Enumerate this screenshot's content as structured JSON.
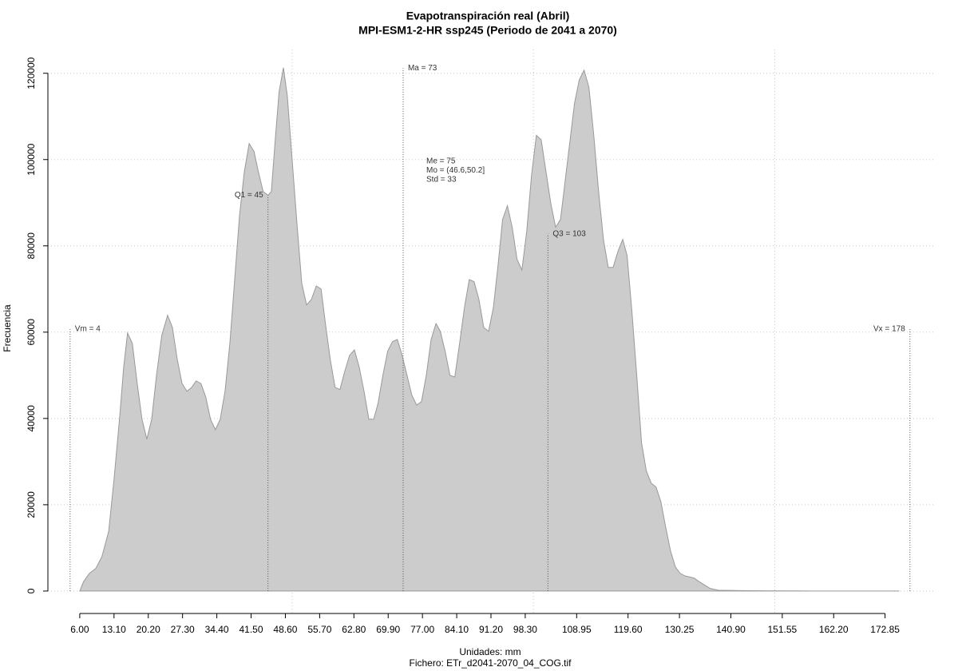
{
  "chart_data": {
    "type": "area",
    "title": "Evapotranspiración real (Abril)",
    "subtitle": "MPI-ESM1-2-HR ssp245 (Periodo de 2041 a 2070)",
    "xlabel": "Unidades: mm",
    "caption": "Fichero: ETr_d2041-2070_04_COG.tif",
    "ylabel": "Frecuencia",
    "color": "#cccccc",
    "edge_color": "#999999",
    "grid": true,
    "xgrid": [
      50,
      100,
      150
    ],
    "xlim": [
      -0.6,
      183
    ],
    "ylim": [
      -5200,
      125500
    ],
    "xticks": [
      {
        "value": 6,
        "label": "6.00"
      },
      {
        "value": 13.1,
        "label": "13.10"
      },
      {
        "value": 20.2,
        "label": "20.20"
      },
      {
        "value": 27.3,
        "label": "27.30"
      },
      {
        "value": 34.4,
        "label": "34.40"
      },
      {
        "value": 41.5,
        "label": "41.50"
      },
      {
        "value": 48.6,
        "label": "48.60"
      },
      {
        "value": 55.7,
        "label": "55.70"
      },
      {
        "value": 62.8,
        "label": "62.80"
      },
      {
        "value": 69.9,
        "label": "69.90"
      },
      {
        "value": 77,
        "label": "77.00"
      },
      {
        "value": 84.1,
        "label": "84.10"
      },
      {
        "value": 91.2,
        "label": "91.20"
      },
      {
        "value": 98.3,
        "label": "98.30"
      },
      {
        "value": 108.95,
        "label": "108.95"
      },
      {
        "value": 119.6,
        "label": "119.60"
      },
      {
        "value": 130.25,
        "label": "130.25"
      },
      {
        "value": 140.9,
        "label": "140.90"
      },
      {
        "value": 151.55,
        "label": "151.55"
      },
      {
        "value": 162.2,
        "label": "162.20"
      },
      {
        "value": 172.85,
        "label": "172.85"
      }
    ],
    "yticks": [
      0,
      20000,
      40000,
      60000,
      80000,
      100000,
      120000
    ],
    "x": [
      6,
      6.8,
      8,
      9.3,
      10.6,
      12,
      13.1,
      14.3,
      15.1,
      15.9,
      16.9,
      17.9,
      18.9,
      19.9,
      20.9,
      21.9,
      23,
      24.2,
      25.2,
      26.2,
      27.2,
      28.2,
      29.2,
      30.1,
      31.1,
      32.1,
      33.1,
      34.1,
      35.1,
      36.1,
      37.1,
      38.1,
      39.1,
      40.1,
      41.1,
      42.1,
      43,
      44,
      45,
      45.7,
      46.5,
      47.3,
      48.2,
      49,
      50,
      51,
      52,
      53,
      54,
      55,
      56,
      56.9,
      57.9,
      58.9,
      59.9,
      60.9,
      61.9,
      62.9,
      63.9,
      64.9,
      65.9,
      66.9,
      67.8,
      68.8,
      69.8,
      70.8,
      71.8,
      72.8,
      73.8,
      74.8,
      75.8,
      76.8,
      77.8,
      78.8,
      79.8,
      80.7,
      81.7,
      82.7,
      83.7,
      84.7,
      85.7,
      86.7,
      87.7,
      88.7,
      89.7,
      90.7,
      91.7,
      92.7,
      93.6,
      94.6,
      95.6,
      96.6,
      97.6,
      98.6,
      99.6,
      100.6,
      101.6,
      102.6,
      103.6,
      104.6,
      105.6,
      106.5,
      107.5,
      108.5,
      109.5,
      110.5,
      111.5,
      112.5,
      113.5,
      114.5,
      115.5,
      116.5,
      117.5,
      118.5,
      119.4,
      120.4,
      121.4,
      122.4,
      123.4,
      124.4,
      125.4,
      126.4,
      127.4,
      128.4,
      129.4,
      130.4,
      131.4,
      132.3,
      133.3,
      134.3,
      135.3,
      136.6,
      138.3,
      143.3,
      148.2,
      154.8,
      164.8,
      175.8
    ],
    "values": [
      0,
      2200,
      4100,
      5200,
      8000,
      13900,
      25900,
      40700,
      51900,
      59800,
      57400,
      48100,
      39800,
      35200,
      39800,
      50000,
      59300,
      63900,
      61100,
      53700,
      48100,
      46300,
      47200,
      48700,
      48100,
      45000,
      39800,
      37400,
      39800,
      46300,
      57400,
      72200,
      87000,
      97200,
      103700,
      101900,
      97200,
      92600,
      91700,
      92600,
      104600,
      115700,
      121300,
      114800,
      100000,
      85200,
      71300,
      66300,
      67600,
      70700,
      70000,
      62000,
      53700,
      47200,
      46700,
      50900,
      54600,
      55900,
      51900,
      46300,
      39800,
      39800,
      43500,
      50000,
      55600,
      57800,
      58300,
      54600,
      50000,
      45400,
      43100,
      43900,
      50000,
      58300,
      62000,
      60200,
      55600,
      50000,
      49600,
      57400,
      65700,
      72200,
      71700,
      67600,
      61100,
      60200,
      65700,
      75900,
      86100,
      89300,
      84300,
      76900,
      74400,
      83300,
      96300,
      105600,
      104600,
      97200,
      89800,
      84300,
      86100,
      94400,
      103700,
      113000,
      118500,
      120700,
      116700,
      105600,
      92600,
      81500,
      75000,
      75000,
      78700,
      81500,
      77800,
      64800,
      50000,
      34300,
      27800,
      25000,
      24100,
      20700,
      14800,
      9300,
      5600,
      4100,
      3500,
      3300,
      3000,
      2200,
      1500,
      600,
      200,
      100,
      50,
      20,
      10,
      0
    ],
    "markers": [
      {
        "label": "Vm = 4",
        "x": 4,
        "y": 60700,
        "label_side": "right"
      },
      {
        "label": "Q1 = 45",
        "x": 45,
        "y": 91700,
        "label_side": "left"
      },
      {
        "label": "Ma = 73",
        "x": 73,
        "y": 121200,
        "label_side": "right"
      },
      {
        "label": "Q3 = 103",
        "x": 103,
        "y": 82800,
        "label_side": "right"
      },
      {
        "label": "Vx = 178",
        "x": 178,
        "y": 60700,
        "label_side": "left"
      }
    ],
    "stats": [
      "Me = 75",
      "Mo = (46.6,50.2]",
      "Std = 33"
    ]
  }
}
